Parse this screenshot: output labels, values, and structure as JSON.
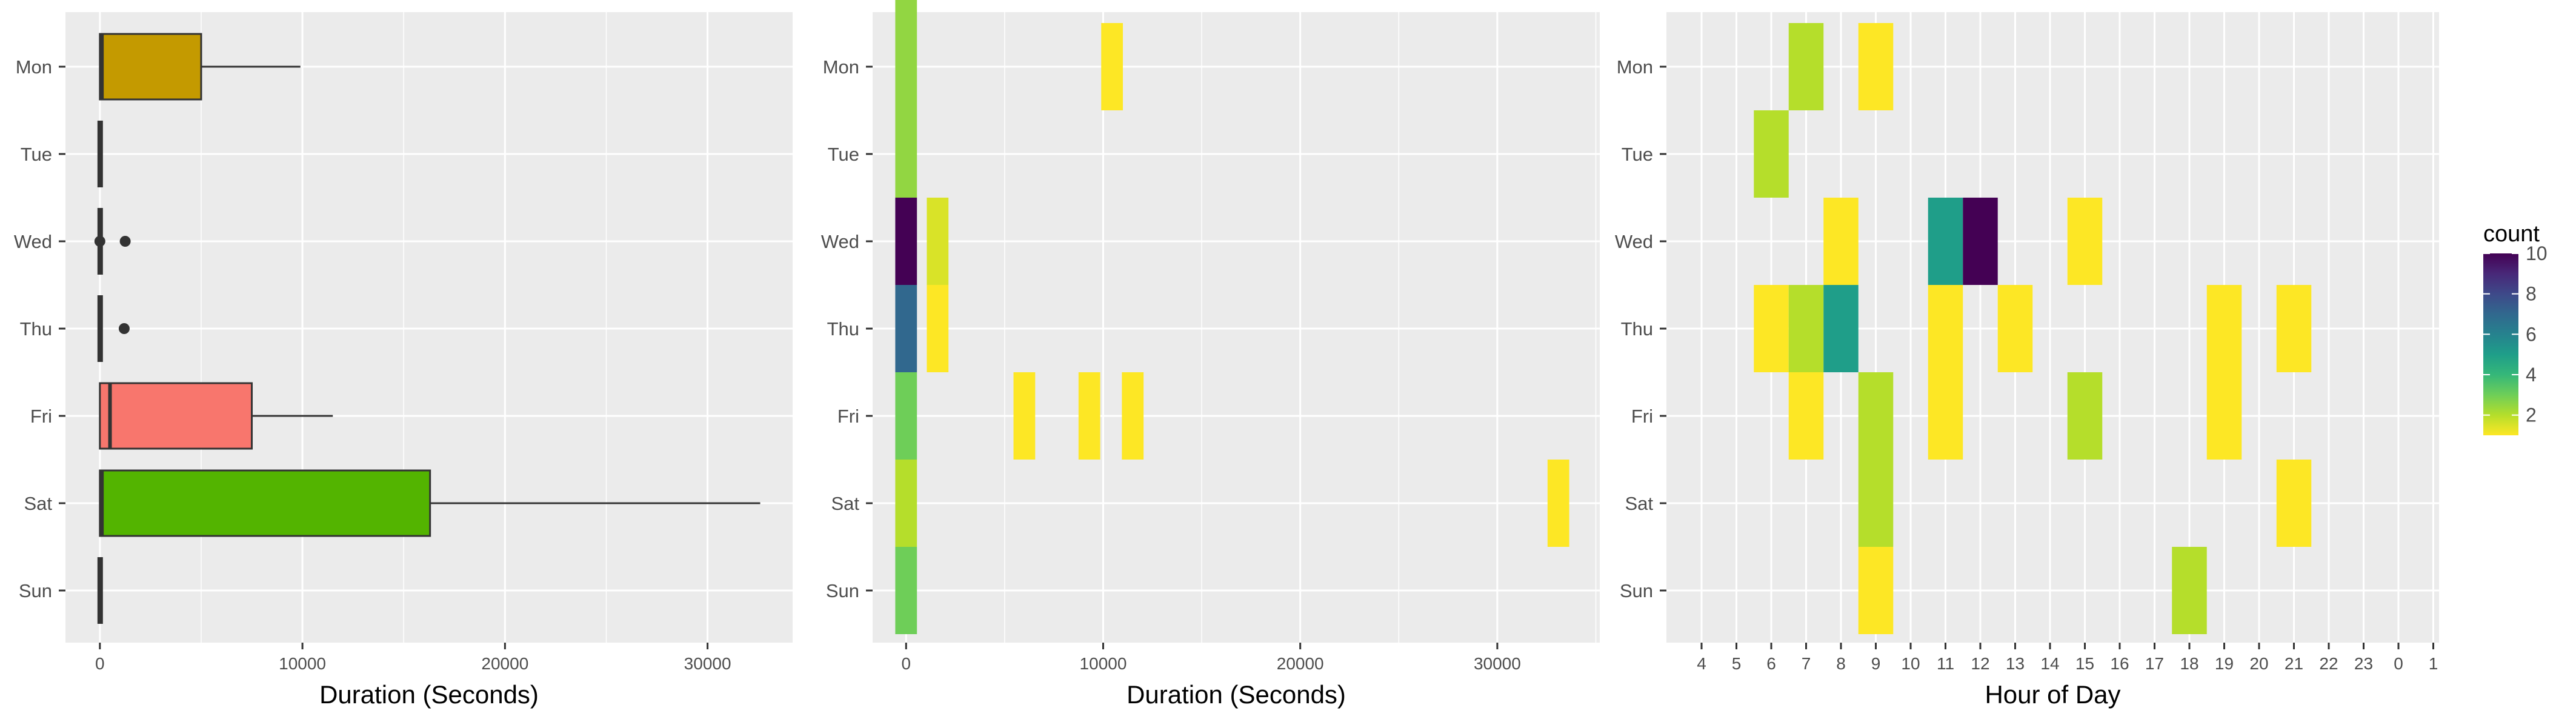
{
  "chart_data": [
    {
      "type": "boxplot",
      "orientation": "horizontal",
      "xlabel": "Duration (Seconds)",
      "ylabel": "",
      "xlim": [
        -1700,
        34200
      ],
      "x_ticks": [
        0,
        10000,
        20000,
        30000
      ],
      "x_tick_labels": [
        "0",
        "10000",
        "20000",
        "30000"
      ],
      "categories": [
        "Mon",
        "Tue",
        "Wed",
        "Thu",
        "Fri",
        "Sat",
        "Sun"
      ],
      "grid": true,
      "boxes": [
        {
          "label": "Mon",
          "whisker_low": 0,
          "q1": 0,
          "median": 100,
          "q3": 5000,
          "whisker_high": 9900,
          "outliers": [],
          "fill": "#C49A00"
        },
        {
          "label": "Tue",
          "whisker_low": 0,
          "q1": 0,
          "median": 30,
          "q3": 60,
          "whisker_high": 90,
          "outliers": [],
          "fill": "#53B400"
        },
        {
          "label": "Wed",
          "whisker_low": 0,
          "q1": 0,
          "median": 30,
          "q3": 60,
          "whisker_high": 100,
          "outliers": [
            0,
            1250
          ],
          "fill": "#00C094"
        },
        {
          "label": "Thu",
          "whisker_low": 0,
          "q1": 0,
          "median": 30,
          "q3": 60,
          "whisker_high": 100,
          "outliers": [
            1200
          ],
          "fill": "#00B6EB"
        },
        {
          "label": "Fri",
          "whisker_low": 0,
          "q1": 0,
          "median": 500,
          "q3": 7500,
          "whisker_high": 11500,
          "outliers": [],
          "fill": "#F8766D"
        },
        {
          "label": "Sat",
          "whisker_low": 0,
          "q1": 0,
          "median": 100,
          "q3": 16300,
          "whisker_high": 32600,
          "outliers": [],
          "fill": "#53B400"
        },
        {
          "label": "Sun",
          "whisker_low": 0,
          "q1": 0,
          "median": 30,
          "q3": 60,
          "whisker_high": 100,
          "outliers": [],
          "fill": "#FB61D7"
        }
      ]
    },
    {
      "type": "heatmap",
      "xlabel": "Duration (Seconds)",
      "ylabel": "",
      "xlim": [
        -1700,
        35200
      ],
      "x_ticks": [
        0,
        10000,
        20000,
        30000
      ],
      "x_tick_labels": [
        "0",
        "10000",
        "20000",
        "30000"
      ],
      "categories": [
        "Mon",
        "Tue",
        "Wed",
        "Thu",
        "Fri",
        "Sat",
        "Sun"
      ],
      "bin_width_seconds": 1100,
      "grid": true,
      "colorscale": "viridis (reversed)",
      "cells": [
        {
          "y": "Mon",
          "x": 0,
          "count": 2.5,
          "span": 1.5
        },
        {
          "y": "Mon",
          "x": 10450,
          "count": 1,
          "span": 1
        },
        {
          "y": "Tue",
          "x": 0,
          "count": 2.5,
          "span": 1
        },
        {
          "y": "Wed",
          "x": 0,
          "count": 10,
          "span": 1
        },
        {
          "y": "Wed",
          "x": 1600,
          "count": 1.5,
          "span": 1
        },
        {
          "y": "Thu",
          "x": 0,
          "count": 7,
          "span": 1
        },
        {
          "y": "Thu",
          "x": 1600,
          "count": 1,
          "span": 1
        },
        {
          "y": "Fri",
          "x": 0,
          "count": 3,
          "span": 1
        },
        {
          "y": "Fri",
          "x": 6000,
          "count": 1,
          "span": 1
        },
        {
          "y": "Fri",
          "x": 9300,
          "count": 1,
          "span": 1
        },
        {
          "y": "Fri",
          "x": 11500,
          "count": 1,
          "span": 1
        },
        {
          "y": "Sat",
          "x": 0,
          "count": 2,
          "span": 1
        },
        {
          "y": "Sat",
          "x": 33100,
          "count": 1,
          "span": 1
        },
        {
          "y": "Sun",
          "x": 0,
          "count": 3,
          "span": 1
        }
      ]
    },
    {
      "type": "heatmap",
      "xlabel": "Hour of Day",
      "ylabel": "",
      "x_categories": [
        "4",
        "5",
        "6",
        "7",
        "8",
        "9",
        "10",
        "11",
        "12",
        "13",
        "14",
        "15",
        "16",
        "17",
        "18",
        "19",
        "20",
        "21",
        "22",
        "23",
        "0",
        "1"
      ],
      "categories": [
        "Mon",
        "Tue",
        "Wed",
        "Thu",
        "Fri",
        "Sat",
        "Sun"
      ],
      "grid": true,
      "colorscale": "viridis (reversed)",
      "cells": [
        {
          "y": "Mon",
          "x": "7",
          "count": 2
        },
        {
          "y": "Mon",
          "x": "9",
          "count": 1
        },
        {
          "y": "Tue",
          "x": "6",
          "count": 2
        },
        {
          "y": "Wed",
          "x": "8",
          "count": 1
        },
        {
          "y": "Wed",
          "x": "11",
          "count": 5
        },
        {
          "y": "Wed",
          "x": "12",
          "count": 10
        },
        {
          "y": "Wed",
          "x": "15",
          "count": 1
        },
        {
          "y": "Thu",
          "x": "6",
          "count": 1
        },
        {
          "y": "Thu",
          "x": "7",
          "count": 2
        },
        {
          "y": "Thu",
          "x": "8",
          "count": 5
        },
        {
          "y": "Thu",
          "x": "11",
          "count": 1
        },
        {
          "y": "Thu",
          "x": "13",
          "count": 1
        },
        {
          "y": "Thu",
          "x": "19",
          "count": 1
        },
        {
          "y": "Thu",
          "x": "21",
          "count": 1
        },
        {
          "y": "Fri",
          "x": "7",
          "count": 1
        },
        {
          "y": "Fri",
          "x": "9",
          "count": 2
        },
        {
          "y": "Fri",
          "x": "11",
          "count": 1
        },
        {
          "y": "Fri",
          "x": "15",
          "count": 2
        },
        {
          "y": "Fri",
          "x": "19",
          "count": 1
        },
        {
          "y": "Sat",
          "x": "9",
          "count": 2
        },
        {
          "y": "Sat",
          "x": "21",
          "count": 1
        },
        {
          "y": "Sun",
          "x": "9",
          "count": 1
        },
        {
          "y": "Sun",
          "x": "18",
          "count": 2
        }
      ]
    }
  ],
  "legend": {
    "title": "count",
    "ticks": [
      2,
      4,
      6,
      8,
      10
    ],
    "tick_labels": [
      "2",
      "4",
      "6",
      "8",
      "10"
    ],
    "range": [
      1,
      10
    ],
    "colors": [
      "#FDE725",
      "#B5DE2B",
      "#6ECE58",
      "#35B779",
      "#1F9E89",
      "#26828E",
      "#31688E",
      "#3E4989",
      "#482878",
      "#440154"
    ]
  },
  "colors": {
    "panel_background": "#EBEBEB",
    "grid_major": "#FFFFFF",
    "box_outline": "#333333"
  }
}
